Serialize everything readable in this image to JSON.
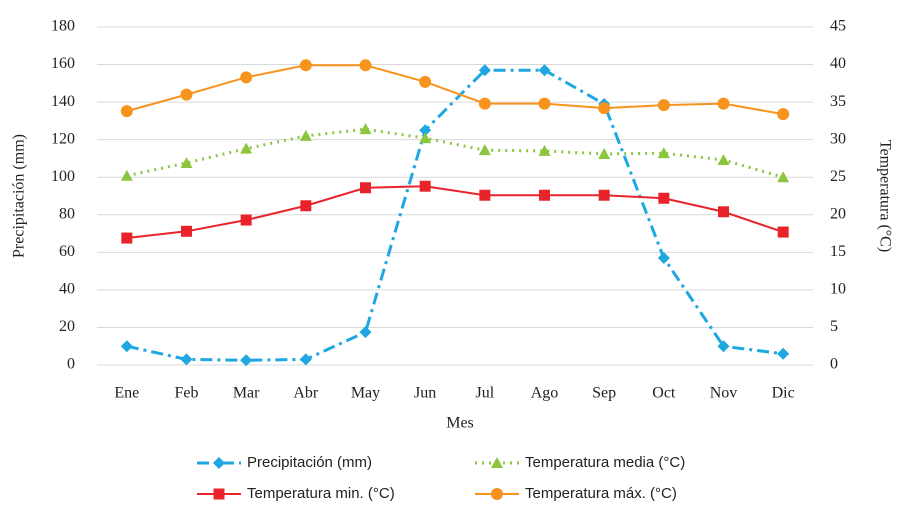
{
  "chart_data": {
    "type": "line",
    "x_label": "Mes",
    "y_label": "Precipitación (mm)",
    "y2_label": "Temperatura (°C)",
    "categories": [
      "Ene",
      "Feb",
      "Mar",
      "Abr",
      "May",
      "Jun",
      "Jul",
      "Ago",
      "Sep",
      "Oct",
      "Nov",
      "Dic"
    ],
    "ylim": [
      0,
      180
    ],
    "yticks": [
      0,
      20,
      40,
      60,
      80,
      100,
      120,
      140,
      160,
      180
    ],
    "y2lim": [
      0,
      45
    ],
    "y2ticks": [
      0,
      5,
      10,
      15,
      20,
      25,
      30,
      35,
      40,
      45
    ],
    "grid": true,
    "series": [
      {
        "name": "Precipitación (mm)",
        "color": "#1ea7e1",
        "marker": "diamond",
        "line_style": "dashdot",
        "values": [
          10,
          3,
          2.5,
          3,
          17.5,
          125,
          157,
          157,
          139,
          57,
          10,
          6
        ]
      },
      {
        "name": "Temperatura media (°C)",
        "color": "#8cc63f",
        "marker": "triangle",
        "line_style": "dotted",
        "axis": "y2",
        "values": [
          25.2,
          26.9,
          28.8,
          30.5,
          31.4,
          30.2,
          28.6,
          28.5,
          28.1,
          28.2,
          27.3,
          25.0
        ]
      },
      {
        "name": "Temperatura min. (°C)",
        "color": "#e8242a",
        "marker": "square",
        "line_style": "solid",
        "axis": "y2",
        "values": [
          16.9,
          17.8,
          19.3,
          21.2,
          23.6,
          23.8,
          22.6,
          22.6,
          22.6,
          22.2,
          20.4,
          17.7
        ]
      },
      {
        "name": "Temperatura máx. (°C)",
        "color": "#f7941d",
        "marker": "circle",
        "line_style": "solid",
        "axis": "y2",
        "values": [
          33.8,
          36.0,
          38.3,
          39.9,
          39.9,
          37.7,
          34.8,
          34.8,
          34.2,
          34.6,
          34.8,
          33.4
        ]
      }
    ]
  }
}
